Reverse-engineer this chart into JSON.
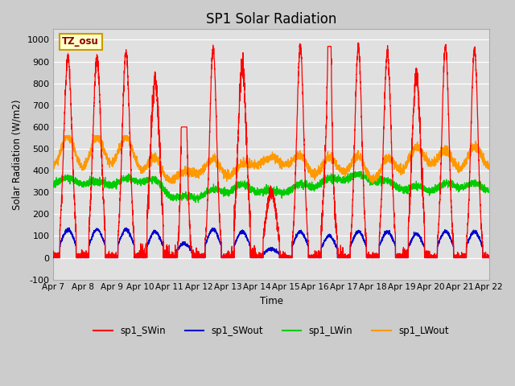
{
  "title": "SP1 Solar Radiation",
  "ylabel": "Solar Radiation (W/m2)",
  "xlabel": "Time",
  "ylim": [
    -100,
    1050
  ],
  "xlim": [
    0,
    15
  ],
  "colors": {
    "SWin": "#ff0000",
    "SWout": "#0000cc",
    "LWin": "#00cc00",
    "LWout": "#ff9900"
  },
  "xtick_labels": [
    "Apr 7",
    "Apr 8",
    "Apr 9",
    "Apr 10",
    "Apr 11",
    "Apr 12",
    "Apr 13",
    "Apr 14",
    "Apr 15",
    "Apr 16",
    "Apr 17",
    "Apr 18",
    "Apr 19",
    "Apr 20",
    "Apr 21",
    "Apr 22"
  ],
  "xtick_positions": [
    0,
    1,
    2,
    3,
    4,
    5,
    6,
    7,
    8,
    9,
    10,
    11,
    12,
    13,
    14,
    15
  ],
  "ytick_values": [
    -100,
    0,
    100,
    200,
    300,
    400,
    500,
    600,
    700,
    800,
    900,
    1000
  ],
  "annotation_text": "TZ_osu",
  "legend_entries": [
    "sp1_SWin",
    "sp1_SWout",
    "sp1_LWin",
    "sp1_LWout"
  ],
  "sw_peaks": [
    920,
    920,
    940,
    810,
    600,
    960,
    880,
    300,
    970,
    680,
    970,
    940,
    840,
    970,
    960
  ],
  "swout_flat": 120,
  "day_start": 0.22,
  "day_end": 0.78,
  "lwin_base": 320,
  "lwout_base": 400
}
